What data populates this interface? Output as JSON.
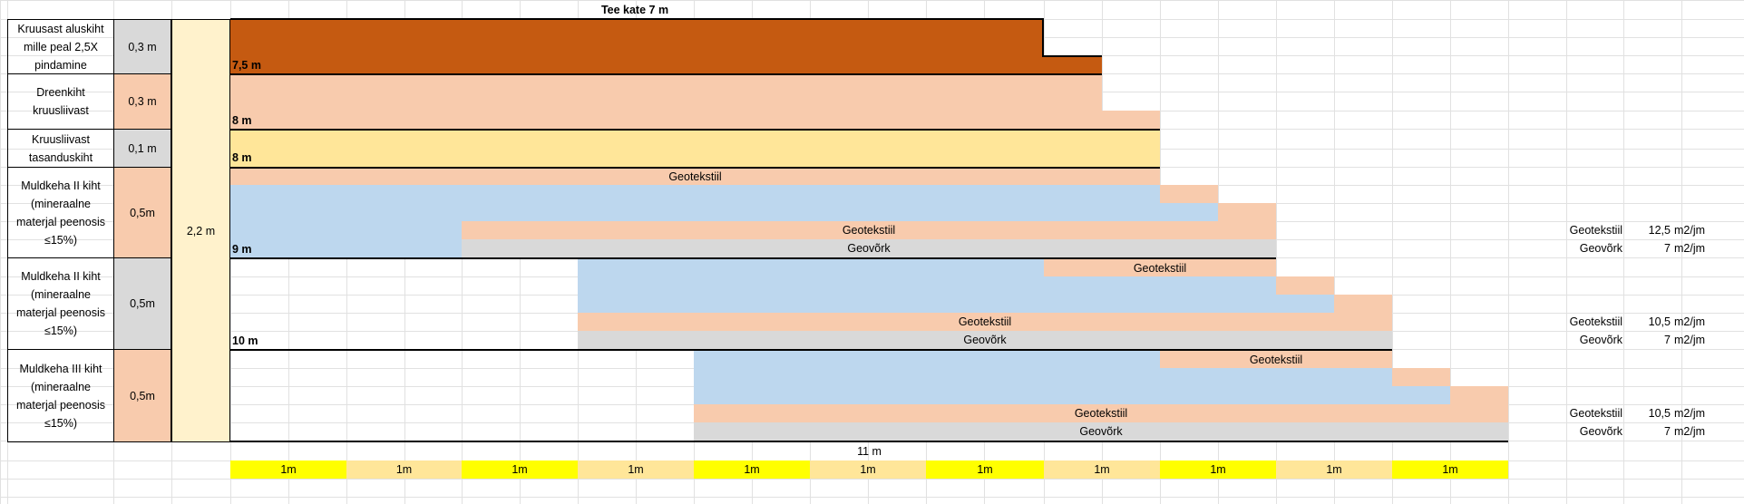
{
  "title": "Tee kate 7 m",
  "colors": {
    "asphalt": "#c55a11",
    "peach": "#f8cbad",
    "yellow_sand": "#ffe699",
    "blue": "#bdd7ee",
    "grey": "#d9d9d9",
    "total": "#fff2cc",
    "ruler_yellow": "#ffff00",
    "ruler_light": "#ffe699"
  },
  "layers": [
    {
      "label": "Kruusast aluskiht mille peal 2,5X pindamine",
      "thickness": "0,3 m",
      "width_label": "7,5 m"
    },
    {
      "label": "Dreenkiht kruusliivast",
      "thickness": "0,3 m",
      "width_label": "8 m"
    },
    {
      "label": "Kruusliivast tasanduskiht",
      "thickness": "0,1 m",
      "width_label": "8 m"
    },
    {
      "label": "Muldkeha II kiht (mineraalne materjal peenosis ≤15%)",
      "thickness": "0,5m",
      "width_label": "9 m"
    },
    {
      "label": "Muldkeha II kiht (mineraalne materjal peenosis ≤15%)",
      "thickness": "0,5m",
      "width_label": "10 m"
    },
    {
      "label": "Muldkeha III kiht (mineraalne materjal peenosis ≤15%)",
      "thickness": "0,5m",
      "width_label": ""
    }
  ],
  "total_thickness": "2,2 m",
  "bands": {
    "geotekstiil": "Geotekstiil",
    "geovork": "Geovõrk"
  },
  "side_table": [
    {
      "name": "Geotekstiil",
      "value": "12,5",
      "unit": "m2/jm"
    },
    {
      "name": "Geovõrk",
      "value": "7",
      "unit": "m2/jm"
    },
    {
      "name": "Geotekstiil",
      "value": "10,5",
      "unit": "m2/jm"
    },
    {
      "name": "Geovõrk",
      "value": "7",
      "unit": "m2/jm"
    },
    {
      "name": "Geotekstiil",
      "value": "10,5",
      "unit": "m2/jm"
    },
    {
      "name": "Geovõrk",
      "value": "7",
      "unit": "m2/jm"
    }
  ],
  "bottom_width_label": "11 m",
  "ruler": [
    "1m",
    "1m",
    "1m",
    "1m",
    "1m",
    "1m",
    "1m",
    "1m",
    "1m",
    "1m",
    "1m"
  ]
}
